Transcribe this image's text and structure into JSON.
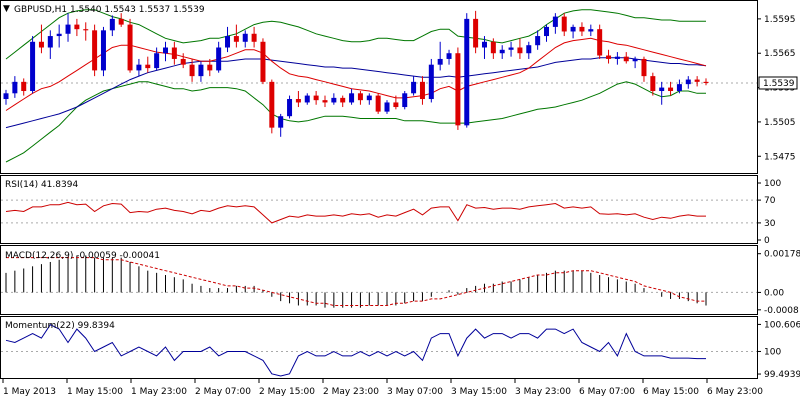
{
  "header": {
    "symbol_line": "GBPUSD,H1  1.5540 1.5543 1.5537 1.5539",
    "dropdown_glyph": "▼"
  },
  "price_panel": {
    "ticks": [
      "1.5595",
      "1.5565",
      "1.5535",
      "1.5505",
      "1.5475"
    ],
    "tick_values": [
      1.5595,
      1.5565,
      1.5535,
      1.5505,
      1.5475
    ],
    "range": [
      1.5463,
      1.5608
    ],
    "current_label": "1.5539",
    "current_value": 1.5539
  },
  "rsi_panel": {
    "label": "RSI(14) 41.8394",
    "ticks": [
      "100",
      "70",
      "30",
      "0"
    ],
    "tick_values": [
      100,
      70,
      30,
      0
    ],
    "levels": [
      70,
      30
    ],
    "range": [
      0,
      100
    ]
  },
  "macd_panel": {
    "label": "MACD(12,26,9) -0.00059 -0.00041",
    "ticks": [
      "0.00178",
      "0.00",
      "-0.0008"
    ],
    "tick_values": [
      0.00178,
      0.0,
      -0.0008
    ],
    "range": [
      -0.0009,
      0.00195
    ]
  },
  "momentum_panel": {
    "label": "Momentum(22) 99.8394",
    "ticks": [
      "100.6061",
      "100",
      "99.4939"
    ],
    "tick_values": [
      100.6061,
      100,
      99.4939
    ],
    "range": [
      99.45,
      100.66
    ]
  },
  "time_axis": {
    "labels": [
      "1 May 2013",
      "1 May 15:00",
      "1 May 23:00",
      "2 May 07:00",
      "2 May 15:00",
      "2 May 23:00",
      "3 May 07:00",
      "3 May 15:00",
      "3 May 23:00",
      "6 May 07:00",
      "6 May 15:00",
      "6 May 23:00"
    ]
  },
  "colors": {
    "bull": "#0000cc",
    "bear": "#dd0000",
    "ma_red": "#dd0000",
    "ma_blue": "#000099",
    "bollinger": "#007700",
    "rsi": "#cc0000",
    "macd_signal": "#cc0000",
    "momentum": "#000099",
    "grid": "#aaaaaa",
    "axis": "#000000"
  },
  "chart_data": {
    "type": "candlestick",
    "candles": [
      [
        1.5525,
        1.5533,
        1.552,
        1.553
      ],
      [
        1.553,
        1.5545,
        1.5526,
        1.554
      ],
      [
        1.554,
        1.5543,
        1.5528,
        1.5532
      ],
      [
        1.5532,
        1.558,
        1.553,
        1.5575
      ],
      [
        1.5575,
        1.559,
        1.5565,
        1.557
      ],
      [
        1.557,
        1.5585,
        1.556,
        1.558
      ],
      [
        1.558,
        1.559,
        1.557,
        1.5582
      ],
      [
        1.5582,
        1.56,
        1.5575,
        1.559
      ],
      [
        1.559,
        1.5595,
        1.558,
        1.5586
      ],
      [
        1.5586,
        1.5592,
        1.5576,
        1.5585
      ],
      [
        1.5585,
        1.559,
        1.5545,
        1.555
      ],
      [
        1.555,
        1.5588,
        1.5545,
        1.5585
      ],
      [
        1.5585,
        1.5598,
        1.558,
        1.5595
      ],
      [
        1.5595,
        1.56,
        1.5588,
        1.559
      ],
      [
        1.559,
        1.5595,
        1.5548,
        1.555
      ],
      [
        1.555,
        1.556,
        1.5545,
        1.5555
      ],
      [
        1.5555,
        1.5562,
        1.5548,
        1.5552
      ],
      [
        1.5552,
        1.557,
        1.555,
        1.5565
      ],
      [
        1.5565,
        1.5575,
        1.5558,
        1.557
      ],
      [
        1.557,
        1.5575,
        1.5555,
        1.556
      ],
      [
        1.556,
        1.5565,
        1.5552,
        1.5555
      ],
      [
        1.5555,
        1.556,
        1.554,
        1.5545
      ],
      [
        1.5545,
        1.5558,
        1.554,
        1.5555
      ],
      [
        1.5555,
        1.556,
        1.5545,
        1.555
      ],
      [
        1.555,
        1.5575,
        1.5548,
        1.557
      ],
      [
        1.557,
        1.5588,
        1.5566,
        1.558
      ],
      [
        1.558,
        1.559,
        1.557,
        1.5575
      ],
      [
        1.5575,
        1.5585,
        1.557,
        1.5582
      ],
      [
        1.5582,
        1.5588,
        1.557,
        1.5575
      ],
      [
        1.5575,
        1.5578,
        1.5538,
        1.554
      ],
      [
        1.554,
        1.5542,
        1.5495,
        1.55
      ],
      [
        1.55,
        1.5512,
        1.5492,
        1.551
      ],
      [
        1.551,
        1.5528,
        1.5508,
        1.5525
      ],
      [
        1.5525,
        1.5532,
        1.5518,
        1.5522
      ],
      [
        1.5522,
        1.553,
        1.552,
        1.5528
      ],
      [
        1.5528,
        1.5532,
        1.552,
        1.5524
      ],
      [
        1.5524,
        1.5528,
        1.5518,
        1.5522
      ],
      [
        1.5522,
        1.553,
        1.552,
        1.5526
      ],
      [
        1.5526,
        1.5528,
        1.5518,
        1.5522
      ],
      [
        1.5522,
        1.5534,
        1.552,
        1.553
      ],
      [
        1.553,
        1.5532,
        1.552,
        1.5524
      ],
      [
        1.5524,
        1.553,
        1.552,
        1.5528
      ],
      [
        1.5528,
        1.553,
        1.5512,
        1.5514
      ],
      [
        1.5514,
        1.5524,
        1.5512,
        1.5522
      ],
      [
        1.5522,
        1.5528,
        1.5516,
        1.5518
      ],
      [
        1.5518,
        1.5532,
        1.5516,
        1.553
      ],
      [
        1.553,
        1.5545,
        1.5528,
        1.554
      ],
      [
        1.554,
        1.5545,
        1.552,
        1.5525
      ],
      [
        1.5525,
        1.556,
        1.5522,
        1.5555
      ],
      [
        1.5555,
        1.5575,
        1.555,
        1.556
      ],
      [
        1.556,
        1.5568,
        1.5555,
        1.5565
      ],
      [
        1.5565,
        1.557,
        1.5498,
        1.5502
      ],
      [
        1.5502,
        1.56,
        1.55,
        1.5595
      ],
      [
        1.5595,
        1.5602,
        1.5565,
        1.557
      ],
      [
        1.557,
        1.558,
        1.556,
        1.5575
      ],
      [
        1.5575,
        1.5578,
        1.556,
        1.5565
      ],
      [
        1.5565,
        1.5572,
        1.556,
        1.5568
      ],
      [
        1.5568,
        1.5575,
        1.5562,
        1.557
      ],
      [
        1.557,
        1.5578,
        1.556,
        1.5565
      ],
      [
        1.5565,
        1.5575,
        1.556,
        1.5572
      ],
      [
        1.5572,
        1.5585,
        1.5568,
        1.558
      ],
      [
        1.558,
        1.559,
        1.5575,
        1.5588
      ],
      [
        1.5588,
        1.56,
        1.5582,
        1.5597
      ],
      [
        1.5597,
        1.56,
        1.558,
        1.5584
      ],
      [
        1.5584,
        1.559,
        1.5578,
        1.5588
      ],
      [
        1.5588,
        1.5592,
        1.558,
        1.5584
      ],
      [
        1.5584,
        1.559,
        1.558,
        1.5586
      ],
      [
        1.5586,
        1.559,
        1.556,
        1.5563
      ],
      [
        1.5563,
        1.5568,
        1.5556,
        1.556
      ],
      [
        1.556,
        1.5566,
        1.5555,
        1.5562
      ],
      [
        1.5562,
        1.5566,
        1.5556,
        1.5558
      ],
      [
        1.5558,
        1.5562,
        1.5552,
        1.556
      ],
      [
        1.556,
        1.5562,
        1.554,
        1.5545
      ],
      [
        1.5545,
        1.5548,
        1.5528,
        1.5532
      ],
      [
        1.5532,
        1.554,
        1.552,
        1.5535
      ],
      [
        1.5535,
        1.554,
        1.5528,
        1.5532
      ],
      [
        1.5532,
        1.5542,
        1.553,
        1.5538
      ],
      [
        1.5538,
        1.5545,
        1.5534,
        1.5542
      ],
      [
        1.5542,
        1.5545,
        1.5536,
        1.554
      ],
      [
        1.554,
        1.5543,
        1.5537,
        1.5539
      ]
    ],
    "bollinger_upper": [
      1.556,
      1.5566,
      1.5572,
      1.5578,
      1.5584,
      1.559,
      1.5596,
      1.56,
      1.5602,
      1.5603,
      1.5603,
      1.56,
      1.5597,
      1.5595,
      1.5592,
      1.559,
      1.5586,
      1.5582,
      1.5578,
      1.5576,
      1.5574,
      1.5575,
      1.5576,
      1.5578,
      1.5578,
      1.558,
      1.5582,
      1.5586,
      1.559,
      1.5592,
      1.5593,
      1.5592,
      1.559,
      1.5588,
      1.5585,
      1.5582,
      1.558,
      1.5578,
      1.5576,
      1.5575,
      1.5575,
      1.5576,
      1.5578,
      1.5578,
      1.5577,
      1.5576,
      1.5576,
      1.558,
      1.5584,
      1.5586,
      1.5586,
      1.558,
      1.5579,
      1.5578,
      1.5577,
      1.5575,
      1.5574,
      1.5576,
      1.5578,
      1.558,
      1.5584,
      1.559,
      1.5595,
      1.56,
      1.5602,
      1.5603,
      1.5603,
      1.5602,
      1.5601,
      1.56,
      1.5598,
      1.5596,
      1.5596,
      1.5595,
      1.5594,
      1.5594,
      1.5593,
      1.5593,
      1.5593,
      1.5593
    ],
    "bollinger_lower": [
      1.547,
      1.5474,
      1.5478,
      1.5484,
      1.549,
      1.5496,
      1.5502,
      1.551,
      1.5518,
      1.5524,
      1.5528,
      1.5532,
      1.5534,
      1.5536,
      1.5538,
      1.554,
      1.554,
      1.5538,
      1.5536,
      1.5534,
      1.5534,
      1.5532,
      1.5533,
      1.5535,
      1.5535,
      1.5535,
      1.5534,
      1.5532,
      1.5526,
      1.552,
      1.5512,
      1.5508,
      1.5506,
      1.5505,
      1.5506,
      1.5508,
      1.551,
      1.551,
      1.551,
      1.5509,
      1.5508,
      1.5508,
      1.5508,
      1.5508,
      1.5508,
      1.5506,
      1.5506,
      1.5506,
      1.5505,
      1.5504,
      1.5504,
      1.5504,
      1.5504,
      1.5505,
      1.5506,
      1.5507,
      1.5508,
      1.551,
      1.5512,
      1.5514,
      1.5516,
      1.5517,
      1.5518,
      1.552,
      1.5522,
      1.5524,
      1.5527,
      1.553,
      1.5534,
      1.5538,
      1.554,
      1.5538,
      1.5534,
      1.553,
      1.5527,
      1.5528,
      1.5532,
      1.5532,
      1.553,
      1.553
    ],
    "ma_fast": [
      1.5515,
      1.552,
      1.5525,
      1.553,
      1.5534,
      1.5536,
      1.554,
      1.5545,
      1.555,
      1.5555,
      1.556,
      1.5565,
      1.557,
      1.5572,
      1.5572,
      1.557,
      1.5568,
      1.5566,
      1.5565,
      1.5564,
      1.5562,
      1.556,
      1.5558,
      1.5558,
      1.556,
      1.5562,
      1.5565,
      1.5568,
      1.5568,
      1.5565,
      1.5558,
      1.5552,
      1.5547,
      1.5545,
      1.5544,
      1.5542,
      1.554,
      1.5538,
      1.5536,
      1.5534,
      1.5533,
      1.5532,
      1.553,
      1.5528,
      1.5526,
      1.5526,
      1.5527,
      1.5528,
      1.553,
      1.5534,
      1.5536,
      1.5532,
      1.5536,
      1.5538,
      1.554,
      1.5542,
      1.5544,
      1.5546,
      1.5548,
      1.5552,
      1.5558,
      1.5564,
      1.557,
      1.5574,
      1.5576,
      1.5577,
      1.5578,
      1.5576,
      1.5575,
      1.5573,
      1.5572,
      1.557,
      1.5568,
      1.5566,
      1.5564,
      1.5562,
      1.556,
      1.5558,
      1.5556,
      1.5554
    ],
    "ma_slow": [
      1.55,
      1.5502,
      1.5504,
      1.5506,
      1.5508,
      1.551,
      1.5512,
      1.5515,
      1.5518,
      1.5522,
      1.5526,
      1.553,
      1.5534,
      1.5538,
      1.5542,
      1.5545,
      1.5548,
      1.555,
      1.5552,
      1.5554,
      1.5556,
      1.5557,
      1.5558,
      1.5558,
      1.5558,
      1.5558,
      1.5559,
      1.556,
      1.556,
      1.556,
      1.5559,
      1.5558,
      1.5557,
      1.5556,
      1.5555,
      1.5554,
      1.5553,
      1.5553,
      1.5552,
      1.5552,
      1.5551,
      1.555,
      1.5549,
      1.5548,
      1.5547,
      1.5546,
      1.5545,
      1.5544,
      1.5544,
      1.5544,
      1.5545,
      1.5544,
      1.5545,
      1.5546,
      1.5547,
      1.5548,
      1.5549,
      1.555,
      1.5551,
      1.5552,
      1.5553,
      1.5555,
      1.5557,
      1.5558,
      1.5559,
      1.556,
      1.556,
      1.5561,
      1.5561,
      1.5561,
      1.5561,
      1.556,
      1.5559,
      1.5558,
      1.5557,
      1.5556,
      1.5556,
      1.5555,
      1.5555,
      1.5554
    ],
    "rsi": [
      50,
      52,
      50,
      58,
      58,
      62,
      62,
      66,
      62,
      63,
      50,
      60,
      64,
      63,
      48,
      50,
      49,
      54,
      56,
      52,
      50,
      46,
      52,
      50,
      56,
      60,
      58,
      60,
      58,
      44,
      30,
      36,
      42,
      40,
      44,
      42,
      42,
      44,
      42,
      46,
      44,
      46,
      40,
      44,
      42,
      48,
      54,
      44,
      56,
      58,
      58,
      34,
      62,
      56,
      57,
      54,
      56,
      56,
      54,
      58,
      60,
      62,
      64,
      56,
      58,
      56,
      58,
      46,
      45,
      46,
      44,
      46,
      40,
      36,
      40,
      38,
      42,
      44,
      42,
      42
    ],
    "macd_hist": [
      0.0009,
      0.001,
      0.0011,
      0.0012,
      0.0013,
      0.0014,
      0.0015,
      0.0016,
      0.0017,
      0.0017,
      0.0016,
      0.0016,
      0.0016,
      0.0016,
      0.0014,
      0.0012,
      0.001,
      0.0009,
      0.0008,
      0.0007,
      0.0006,
      0.0004,
      0.0003,
      0.0002,
      0.0002,
      0.0002,
      0.0003,
      0.0003,
      0.0003,
      0.0001,
      -0.0002,
      -0.0004,
      -0.0005,
      -0.0006,
      -0.0006,
      -0.0006,
      -0.0007,
      -0.0007,
      -0.0007,
      -0.0007,
      -0.0007,
      -0.0006,
      -0.0006,
      -0.0006,
      -0.0006,
      -0.0005,
      -0.0004,
      -0.0004,
      -0.0002,
      0.0,
      0.0001,
      -0.0001,
      0.0002,
      0.0003,
      0.0004,
      0.0004,
      0.0005,
      0.0005,
      0.0006,
      0.0007,
      0.0008,
      0.0009,
      0.001,
      0.001,
      0.001,
      0.001,
      0.0009,
      0.0008,
      0.0007,
      0.0006,
      0.0005,
      0.0004,
      0.0002,
      0.0,
      -0.0002,
      -0.0003,
      -0.0003,
      -0.0004,
      -0.0005,
      -0.0006
    ],
    "macd_signal": [
      0.0016,
      0.0016,
      0.0016,
      0.0016,
      0.0016,
      0.0016,
      0.0016,
      0.0016,
      0.0016,
      0.0016,
      0.0016,
      0.0015,
      0.0015,
      0.0015,
      0.0014,
      0.0013,
      0.0012,
      0.0011,
      0.001,
      0.0009,
      0.0008,
      0.0007,
      0.0006,
      0.0005,
      0.0004,
      0.0003,
      0.0003,
      0.0002,
      0.0002,
      0.0001,
      0.0,
      -0.0001,
      -0.0002,
      -0.0003,
      -0.0004,
      -0.0005,
      -0.0005,
      -0.0006,
      -0.0006,
      -0.0006,
      -0.0006,
      -0.0006,
      -0.0006,
      -0.0006,
      -0.0005,
      -0.0005,
      -0.0004,
      -0.0004,
      -0.0003,
      -0.0003,
      -0.0002,
      -0.0001,
      0.0,
      0.0001,
      0.0002,
      0.0003,
      0.0004,
      0.0005,
      0.0006,
      0.0007,
      0.0008,
      0.0008,
      0.0009,
      0.0009,
      0.001,
      0.001,
      0.001,
      0.0009,
      0.0008,
      0.0007,
      0.0006,
      0.0005,
      0.0003,
      0.0002,
      0.0001,
      0.0,
      -0.0002,
      -0.0003,
      -0.0004,
      -0.0004
    ],
    "momentum": [
      100.25,
      100.2,
      100.3,
      100.4,
      100.3,
      100.6,
      100.5,
      100.2,
      100.5,
      100.3,
      100.0,
      100.1,
      100.2,
      99.9,
      100.0,
      100.1,
      100.0,
      99.9,
      100.1,
      99.8,
      100.0,
      100.0,
      100.0,
      100.1,
      99.9,
      100.0,
      100.0,
      100.0,
      99.9,
      99.8,
      99.5,
      99.45,
      99.5,
      99.9,
      100.0,
      99.9,
      99.9,
      100.0,
      99.9,
      99.9,
      100.0,
      99.9,
      100.0,
      99.9,
      100.0,
      99.9,
      100.0,
      99.8,
      100.3,
      100.4,
      100.4,
      99.9,
      100.3,
      100.5,
      100.3,
      100.4,
      100.4,
      100.3,
      100.4,
      100.4,
      100.3,
      100.5,
      100.5,
      100.4,
      100.5,
      100.2,
      100.1,
      100.0,
      100.2,
      99.9,
      100.4,
      100.0,
      99.9,
      99.9,
      99.9,
      99.85,
      99.85,
      99.85,
      99.84,
      99.84
    ]
  }
}
